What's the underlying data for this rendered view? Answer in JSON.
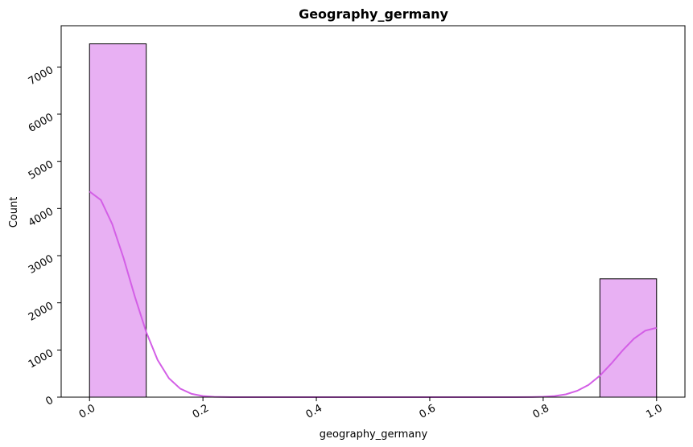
{
  "chart_data": {
    "type": "bar",
    "title": "Geography_germany",
    "xlabel": "geography_germany",
    "ylabel": "Count",
    "xlim": [
      -0.05,
      1.05
    ],
    "ylim": [
      0,
      7875
    ],
    "x_ticks": [
      0.0,
      0.2,
      0.4,
      0.6,
      0.8,
      1.0
    ],
    "x_tick_labels": [
      "0.0",
      "0.2",
      "0.4",
      "0.6",
      "0.8",
      "1.0"
    ],
    "y_ticks": [
      0,
      1000,
      2000,
      3000,
      4000,
      5000,
      6000,
      7000
    ],
    "y_tick_labels": [
      "0",
      "1000",
      "2000",
      "3000",
      "4000",
      "5000",
      "6000",
      "7000"
    ],
    "tick_label_rotation_deg": 30,
    "grid": false,
    "bin_width": 0.1,
    "bins": [
      {
        "x0": 0.0,
        "x1": 0.1,
        "count": 7491
      },
      {
        "x0": 0.1,
        "x1": 0.2,
        "count": 0
      },
      {
        "x0": 0.2,
        "x1": 0.3,
        "count": 0
      },
      {
        "x0": 0.3,
        "x1": 0.4,
        "count": 0
      },
      {
        "x0": 0.4,
        "x1": 0.5,
        "count": 0
      },
      {
        "x0": 0.5,
        "x1": 0.6,
        "count": 0
      },
      {
        "x0": 0.6,
        "x1": 0.7,
        "count": 0
      },
      {
        "x0": 0.7,
        "x1": 0.8,
        "count": 0
      },
      {
        "x0": 0.8,
        "x1": 0.9,
        "count": 0
      },
      {
        "x0": 0.9,
        "x1": 1.0,
        "count": 2509
      }
    ],
    "kde": {
      "x": [
        0.0,
        0.02,
        0.04,
        0.06,
        0.08,
        0.1,
        0.12,
        0.14,
        0.16,
        0.18,
        0.2,
        0.22,
        0.25,
        0.3,
        0.4,
        0.5,
        0.6,
        0.7,
        0.75,
        0.78,
        0.8,
        0.82,
        0.84,
        0.86,
        0.88,
        0.9,
        0.92,
        0.94,
        0.96,
        0.98,
        1.0
      ],
      "y": [
        4360,
        4180,
        3670,
        2950,
        2130,
        1380,
        790,
        400,
        180,
        70,
        24,
        7,
        1,
        0,
        0,
        0,
        0,
        0,
        0,
        2,
        8,
        24,
        60,
        135,
        260,
        455,
        710,
        990,
        1240,
        1410,
        1470
      ]
    },
    "colors": {
      "bar_fill": "#e8b0f3",
      "bar_edge": "#000000",
      "kde_line": "#d35fe6",
      "axis": "#000000"
    }
  }
}
